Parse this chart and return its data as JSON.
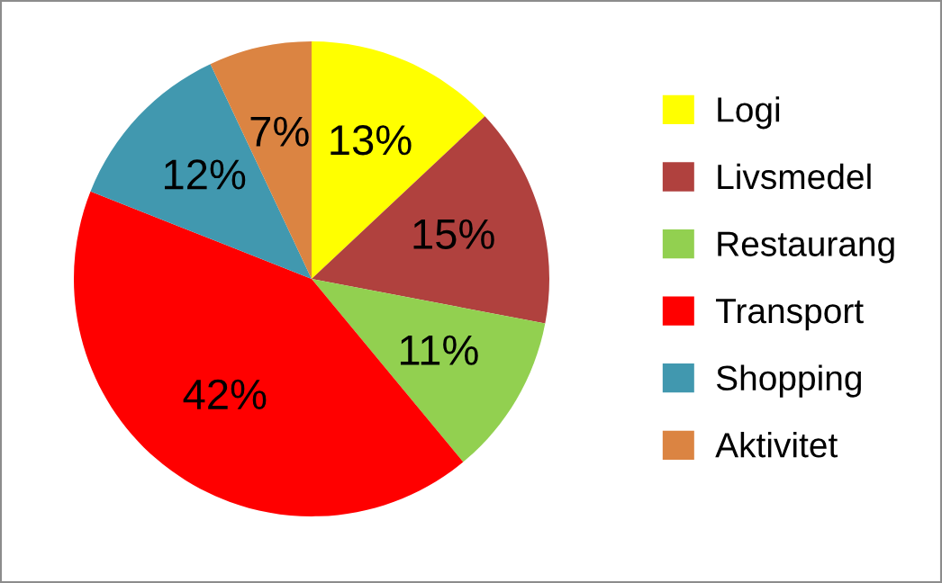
{
  "chart_data": {
    "type": "pie",
    "categories": [
      "Logi",
      "Livsmedel",
      "Restaurang",
      "Transport",
      "Shopping",
      "Aktivitet"
    ],
    "values": [
      13,
      15,
      11,
      42,
      12,
      7
    ],
    "colors": [
      "#ffff00",
      "#b0413e",
      "#92d050",
      "#ff0000",
      "#4198af",
      "#db8442"
    ],
    "value_labels": [
      "13%",
      "15%",
      "11%",
      "42%",
      "12%",
      "7%"
    ],
    "legend": "right"
  }
}
